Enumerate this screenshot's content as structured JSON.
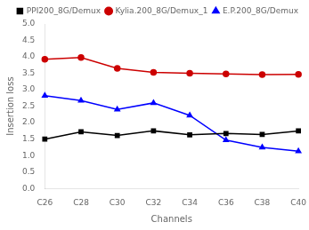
{
  "chart_data": {
    "type": "line",
    "xlabel": "Channels",
    "ylabel": "Insertion loss",
    "categories": [
      "C26",
      "C28",
      "C30",
      "C32",
      "C34",
      "C36",
      "C38",
      "C40"
    ],
    "series": [
      {
        "name": "PPI200_8G/Demux",
        "color": "#000000",
        "marker": "square",
        "line_style": "solid",
        "values": [
          1.5,
          1.72,
          1.61,
          1.75,
          1.63,
          1.67,
          1.64,
          1.75
        ]
      },
      {
        "name": "Kylia.200_8G/Demux_1",
        "color": "#cc0000",
        "marker": "circle",
        "line_style": "solid",
        "values": [
          3.93,
          3.98,
          3.65,
          3.53,
          3.5,
          3.48,
          3.46,
          3.47
        ]
      },
      {
        "name": "E.P.200_8G/Demux",
        "color": "#0000ff",
        "marker": "triangle",
        "line_style": "solid",
        "values": [
          2.82,
          2.67,
          2.4,
          2.6,
          2.22,
          1.47,
          1.25,
          1.13
        ]
      }
    ],
    "ylim": [
      0.0,
      5.0
    ],
    "yticks": [
      {
        "value": 0.0,
        "label": "0.0"
      },
      0.5,
      {
        "value": 1.0,
        "label": "1.0"
      },
      1.5,
      {
        "value": 2.0,
        "label": "2.0"
      },
      2.5,
      {
        "value": 3.0,
        "label": "3.0"
      },
      3.5,
      {
        "value": 4.0,
        "label": "4.0"
      },
      4.5,
      {
        "value": 5.0,
        "label": "5.0"
      }
    ],
    "grid": false,
    "legend": "upper right"
  }
}
